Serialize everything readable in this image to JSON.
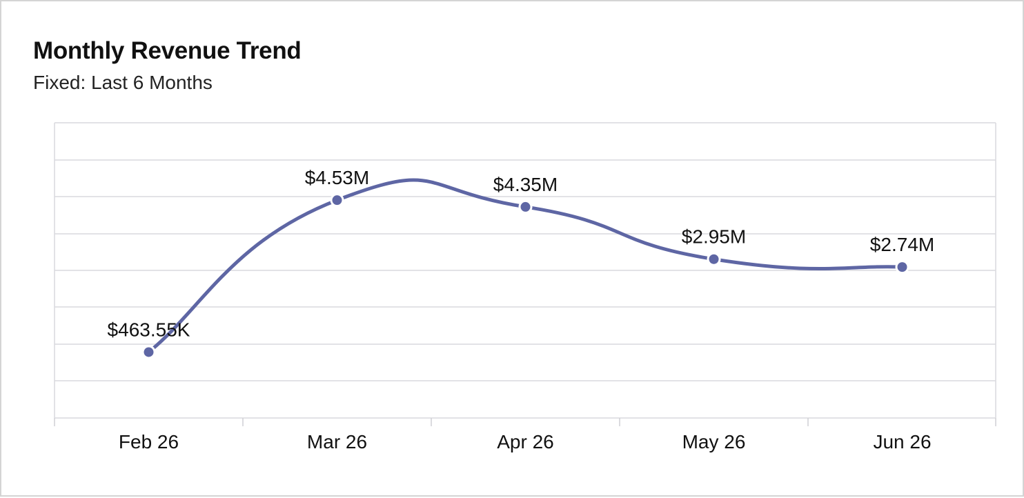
{
  "colors": {
    "series": "#5e66a4",
    "grid": "#d9d9de",
    "background": "#ffffff"
  },
  "chart_data": {
    "type": "line",
    "title": "Monthly Revenue Trend",
    "subtitle": "Fixed: Last 6 Months",
    "xlabel": "",
    "ylabel": "",
    "categories": [
      "Feb 26",
      "Mar 26",
      "Apr 26",
      "May 26",
      "Jun 26"
    ],
    "series": [
      {
        "values": [
          463550,
          4530000,
          4350000,
          2950000,
          2740000
        ],
        "data_labels": [
          "$463.55K",
          "$4.53M",
          "$4.35M",
          "$2.95M",
          "$2.74M"
        ]
      }
    ],
    "ylim": [
      -1300000,
      6600000
    ],
    "grid": true,
    "smooth": true,
    "legend": "none",
    "y_tick_labels": false
  }
}
